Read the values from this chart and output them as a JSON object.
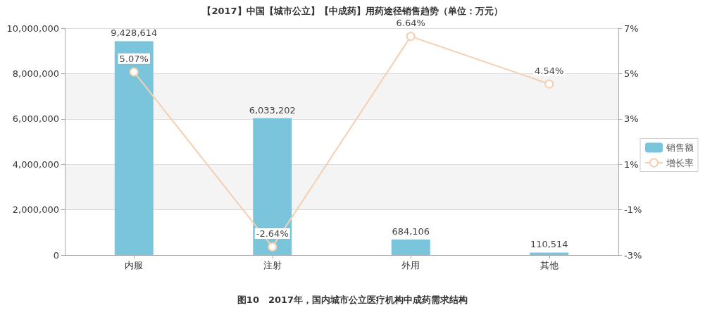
{
  "chart_data": {
    "type": "bar",
    "title": "【2017】中国【城市公立】【中成药】用药途径销售趋势（单位：万元）",
    "categories": [
      "内服",
      "注射",
      "外用",
      "其他"
    ],
    "series": [
      {
        "name": "销售额",
        "color": "#7ac5dc",
        "values": [
          9428614,
          6033202,
          684106,
          110514
        ],
        "value_labels": [
          "9,428,614",
          "6,033,202",
          "684,106",
          "110,514"
        ]
      },
      {
        "name": "增长率",
        "type": "line",
        "axis": "y2",
        "color": "#f5cfb0",
        "marker": "circle",
        "values": [
          5.07,
          -2.64,
          6.64,
          4.54
        ],
        "value_labels": [
          "5.07%",
          "-2.64%",
          "6.64%",
          "4.54%"
        ]
      }
    ],
    "ylim": [
      0,
      10000000
    ],
    "yticks": [
      {
        "value": 0,
        "label": "0"
      },
      {
        "value": 2000000,
        "label": "2,000,000"
      },
      {
        "value": 4000000,
        "label": "4,000,000"
      },
      {
        "value": 6000000,
        "label": "6,000,000"
      },
      {
        "value": 8000000,
        "label": "8,000,000"
      },
      {
        "value": 10000000,
        "label": "10,000,000"
      }
    ],
    "y2lim": [
      -3,
      7
    ],
    "y2ticks": [
      {
        "value": -3,
        "label": "-3%"
      },
      {
        "value": -1,
        "label": "-1%"
      },
      {
        "value": 1,
        "label": "1%"
      },
      {
        "value": 3,
        "label": "3%"
      },
      {
        "value": 5,
        "label": "5%"
      },
      {
        "value": 7,
        "label": "7%"
      }
    ],
    "grid": "y",
    "legend": "right",
    "annotations": [
      "图10　2017年，国内城市公立医疗机构中成药需求结构"
    ]
  }
}
